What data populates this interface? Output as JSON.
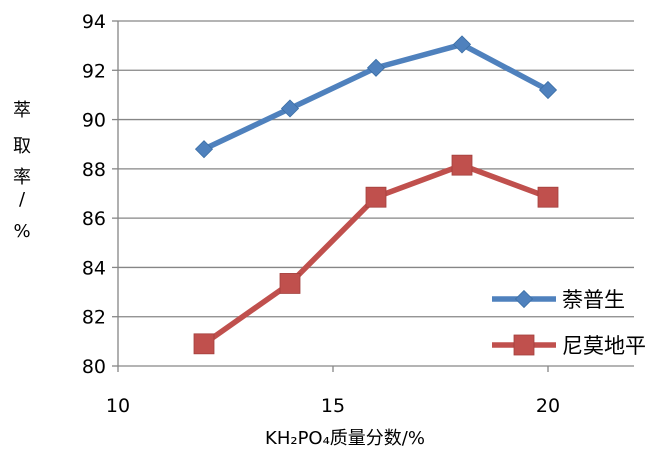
{
  "chart_data": {
    "type": "line",
    "xlabel": "KH₂PO₄质量分数/%",
    "ylabel_chars": [
      "萃",
      "取",
      "率",
      "/",
      "%"
    ],
    "xlim": [
      10,
      22
    ],
    "ylim": [
      80,
      94
    ],
    "xticks": [
      10,
      15,
      20
    ],
    "yticks": [
      80,
      82,
      84,
      86,
      88,
      90,
      92,
      94
    ],
    "grid": "horizontal",
    "legend_position": "bottom-right",
    "x": [
      12,
      14,
      16,
      18,
      20
    ],
    "series": [
      {
        "name": "萘普生",
        "values": [
          88.8,
          90.45,
          92.1,
          93.05,
          91.2
        ],
        "color": "#4F81BD",
        "marker": "diamond"
      },
      {
        "name": "尼莫地平",
        "values": [
          80.9,
          83.35,
          86.85,
          88.15,
          86.85
        ],
        "color": "#C0504D",
        "marker": "square"
      }
    ]
  }
}
